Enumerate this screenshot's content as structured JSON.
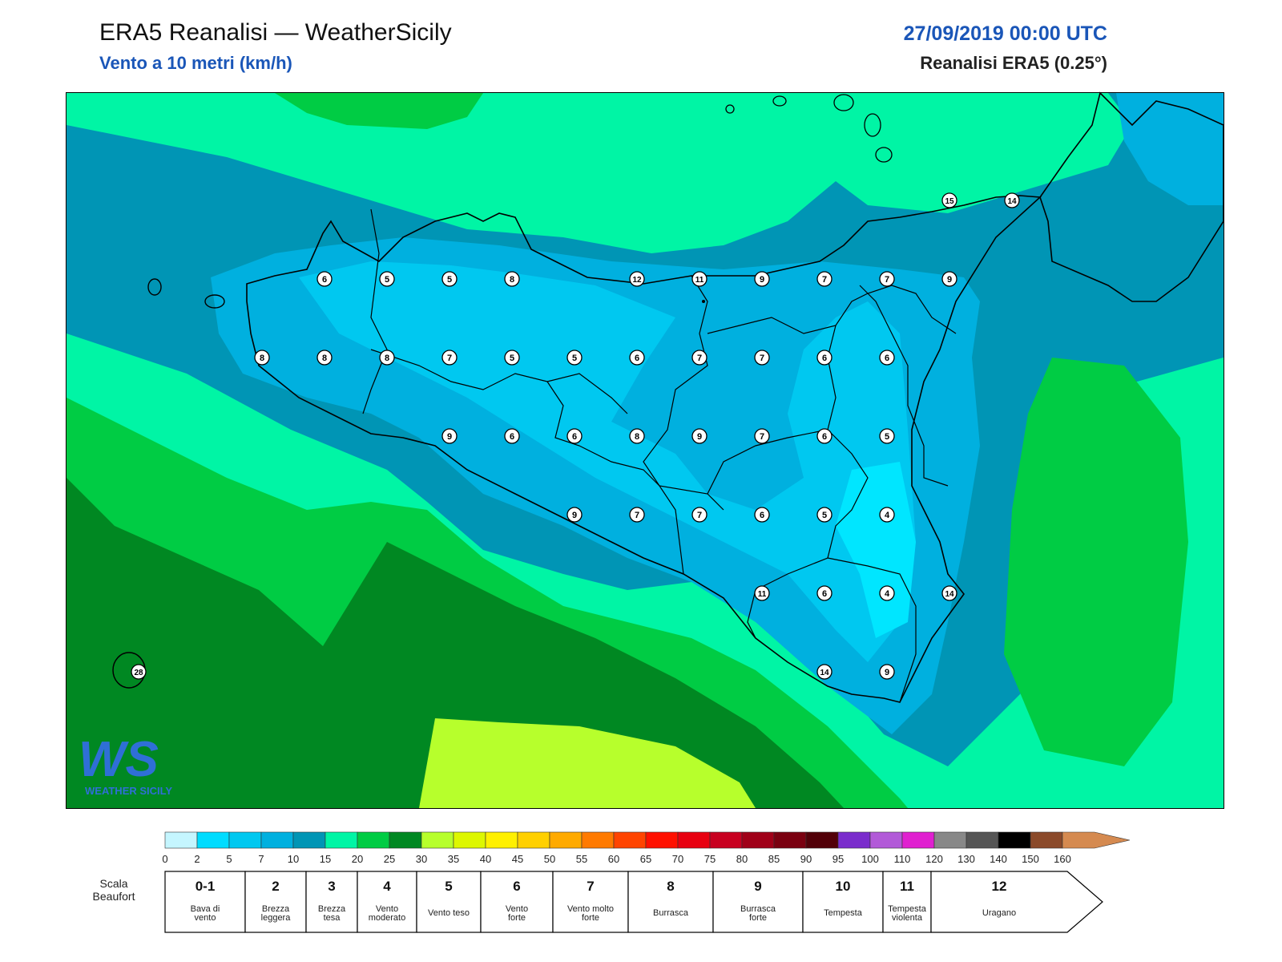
{
  "header": {
    "title": "ERA5 Reanalisi — WeatherSicily",
    "subtitle": "Vento a 10 metri (km/h)",
    "datetime": "27/09/2019 00:00 UTC",
    "model": "Reanalisi ERA5 (0.25°)"
  },
  "logo": {
    "text": "WS",
    "name": "WEATHER SICILY",
    "icon": "weathersicily-logo"
  },
  "station_values": [
    "6",
    "5",
    "5",
    "8",
    "12",
    "11",
    "9",
    "7",
    "7",
    "9",
    "8",
    "8",
    "8",
    "7",
    "5",
    "5",
    "6",
    "7",
    "7",
    "6",
    "6",
    "9",
    "6",
    "6",
    "8",
    "9",
    "7",
    "6",
    "5",
    "9",
    "7",
    "7",
    "6",
    "5",
    "4",
    "11",
    "6",
    "4",
    "14",
    "14",
    "9",
    "15",
    "14",
    "28"
  ],
  "colorbar": {
    "ticks": [
      "0",
      "2",
      "5",
      "7",
      "10",
      "15",
      "20",
      "25",
      "30",
      "35",
      "40",
      "45",
      "50",
      "55",
      "60",
      "65",
      "70",
      "75",
      "80",
      "85",
      "90",
      "95",
      "100",
      "110",
      "120",
      "130",
      "140",
      "150",
      "160"
    ],
    "colors": [
      "#c5f6ff",
      "#00dcff",
      "#00c8f0",
      "#00b0df",
      "#0095b5",
      "#00f5a5",
      "#00cc44",
      "#008822",
      "#b7ff2c",
      "#ddf700",
      "#fff000",
      "#ffd000",
      "#ffaa00",
      "#ff7a00",
      "#ff4400",
      "#ff1000",
      "#e80010",
      "#c80020",
      "#a00018",
      "#7a0010",
      "#520008",
      "#7a2ccc",
      "#b25ad8",
      "#e020d0",
      "#888888",
      "#555555",
      "#000000",
      "#8b4a2a",
      "#d58a50"
    ]
  },
  "beaufort": {
    "title": "Scala Beaufort",
    "scale": [
      {
        "num": "0-1",
        "desc": "Bava di vento"
      },
      {
        "num": "2",
        "desc": "Brezza leggera"
      },
      {
        "num": "3",
        "desc": "Brezza tesa"
      },
      {
        "num": "4",
        "desc": "Vento moderato"
      },
      {
        "num": "5",
        "desc": "Vento teso"
      },
      {
        "num": "6",
        "desc": "Vento forte"
      },
      {
        "num": "7",
        "desc": "Vento molto forte"
      },
      {
        "num": "8",
        "desc": "Burrasca"
      },
      {
        "num": "9",
        "desc": "Burrasca forte"
      },
      {
        "num": "10",
        "desc": "Tempesta"
      },
      {
        "num": "11",
        "desc": "Tempesta violenta"
      },
      {
        "num": "12",
        "desc": "Uragano"
      }
    ]
  }
}
